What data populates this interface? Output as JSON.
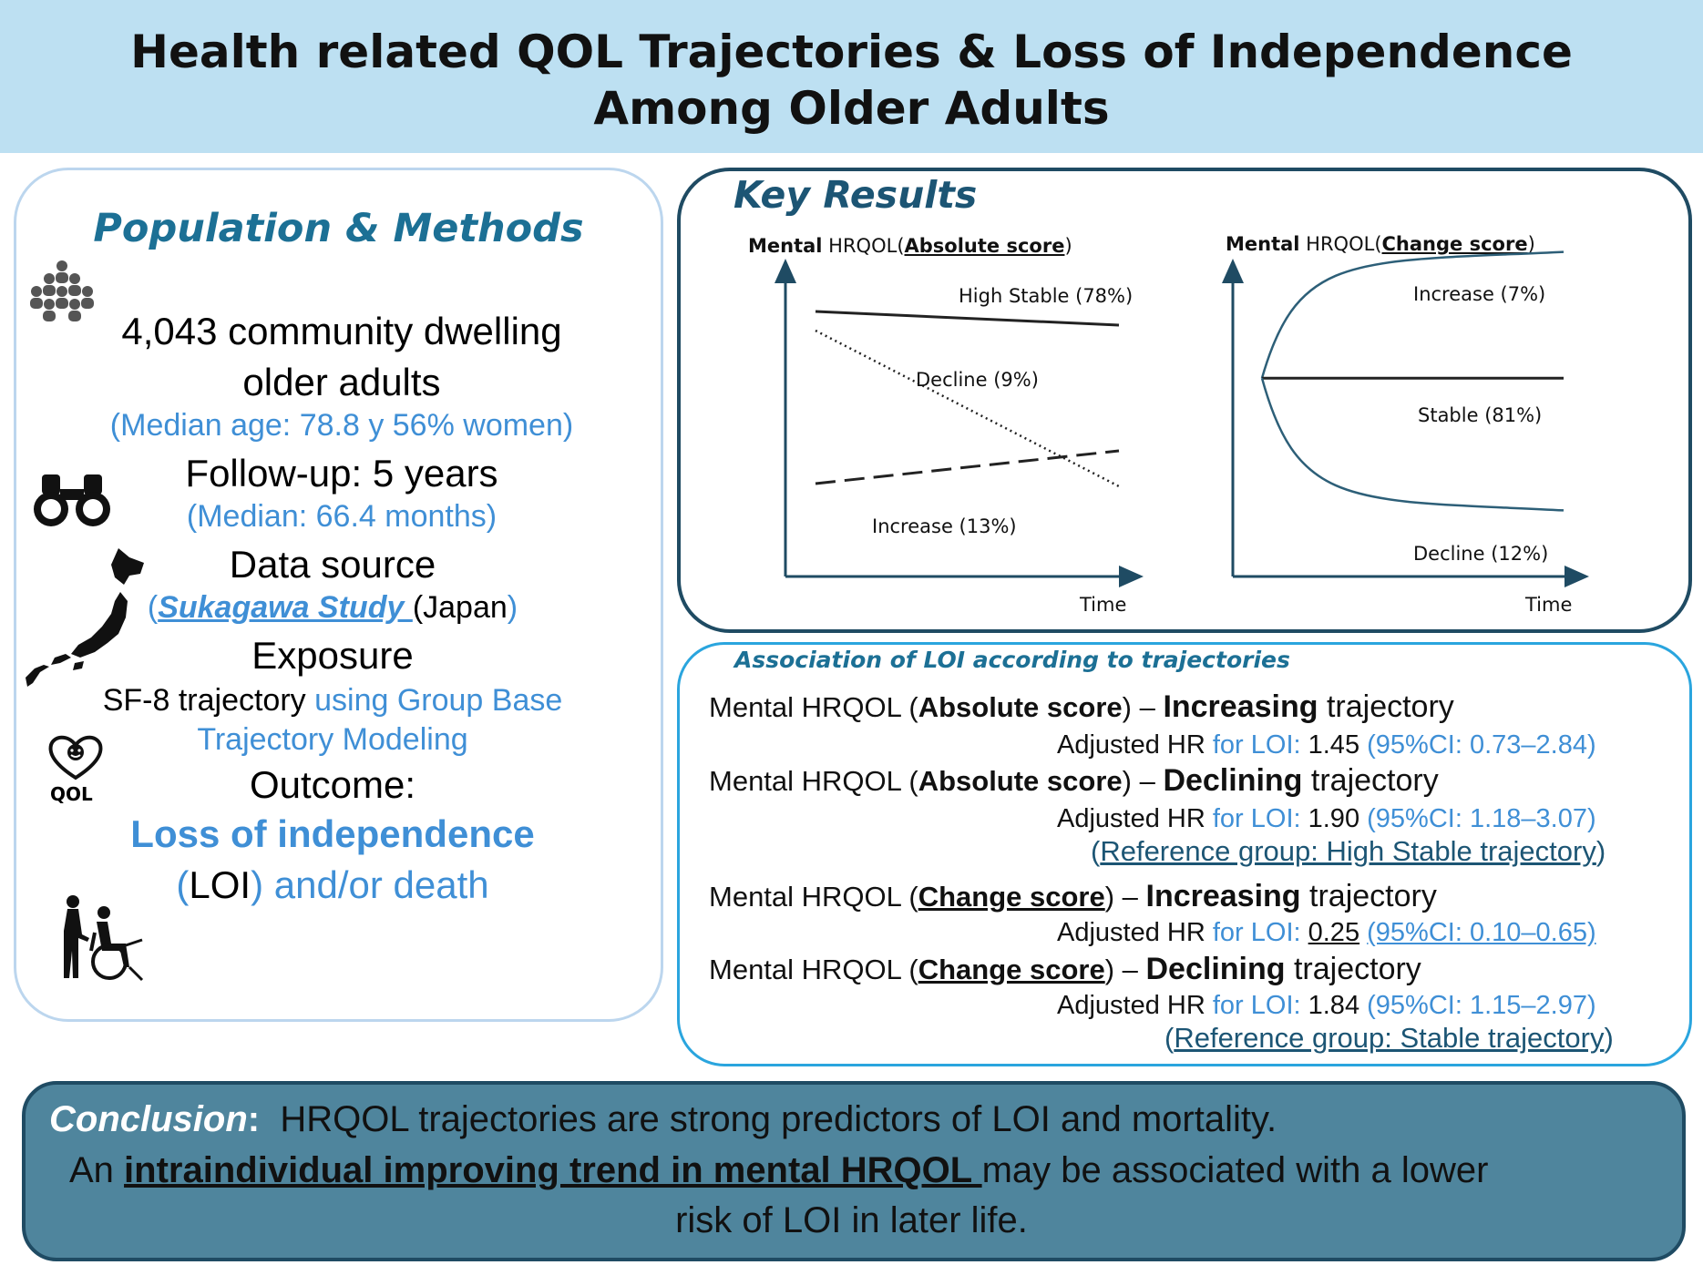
{
  "title": {
    "line1": "Health related QOL Trajectories & Loss of Independence",
    "line2": "Among Older Adults"
  },
  "methods": {
    "heading": "Population & Methods",
    "population_line1": "4,043 community dwelling",
    "population_line2": "older adults",
    "population_detail": "(Median age: 78.8 y 56% women)",
    "followup": "Follow-up: 5 years",
    "followup_detail": "(Median: 66.4 months)",
    "data_source_label": "Data source",
    "data_source_open": "(",
    "data_source_study": "Sukagawa Study ",
    "data_source_country": "(Japan",
    "data_source_close": ")",
    "exposure_label": "Exposure",
    "exposure_part1": "SF-8 trajectory ",
    "exposure_part2": "using Group Base",
    "exposure_line2": "Trajectory Modeling",
    "outcome_label": "Outcome:",
    "outcome_main": "Loss of independence",
    "outcome_paren_open": "(",
    "outcome_loi": "LOI",
    "outcome_rest": ") and/or death",
    "qol_icon_text": "QOL",
    "icons": [
      "people-group-icon",
      "binoculars-icon",
      "japan-map-icon",
      "heart-smile-icon",
      "caregiver-wheelchair-icon"
    ]
  },
  "results": {
    "heading": "Key Results",
    "chart_data": [
      {
        "type": "line",
        "title_bold": "Mental",
        "title_mid": " HRQOL(",
        "title_underlined": "Absolute score",
        "title_end": ")",
        "xlabel": "Time",
        "ylabel": "",
        "x": [
          0,
          1
        ],
        "series": [
          {
            "name": "High Stable (78%)",
            "style": "solid",
            "values": [
              0.86,
              0.81
            ]
          },
          {
            "name": "Decline (9%)",
            "style": "dotted",
            "values": [
              0.79,
              0.22
            ]
          },
          {
            "name": "Increase (13%)",
            "style": "dashed",
            "values": [
              0.23,
              0.35
            ]
          }
        ]
      },
      {
        "type": "line",
        "title_bold": "Mental",
        "title_mid": " HRQOL(",
        "title_underlined": "Change score",
        "title_end": ")",
        "xlabel": "Time",
        "ylabel": "",
        "x": [
          0,
          1
        ],
        "series": [
          {
            "name": "Increase (7%)",
            "style": "curve-up",
            "values": [
              0.56,
              0.98
            ]
          },
          {
            "name": "Stable (81%)",
            "style": "solid",
            "values": [
              0.56,
              0.56
            ]
          },
          {
            "name": "Decline (12%)",
            "style": "curve-down",
            "values": [
              0.56,
              0.12
            ]
          }
        ]
      }
    ]
  },
  "association": {
    "heading": "Association of LOI according to trajectories",
    "hr_prefix": "Adjusted HR ",
    "hr_for": "for LOI: ",
    "rows": [
      {
        "pre": "Mental HRQOL (",
        "score": "Absolute score",
        "mid": ") – ",
        "direction": "Increasing",
        "post": " trajectory",
        "hr": "1.45",
        "ci": "(95%CI: 0.73–2.84)"
      },
      {
        "pre": "Mental HRQOL (",
        "score": "Absolute score",
        "mid": ") – ",
        "direction": "Declining",
        "post": " trajectory",
        "hr": "1.90",
        "ci": "(95%CI: 1.18–3.07)"
      },
      {
        "pre": "Mental HRQOL (",
        "score": "Change score",
        "mid": ") – ",
        "direction": "Increasing",
        "post": " trajectory",
        "hr": "0.25",
        "ci": "(95%CI: 0.10–0.65)"
      },
      {
        "pre": "Mental HRQOL (",
        "score": "Change score",
        "mid": ") – ",
        "direction": "Declining",
        "post": " trajectory",
        "hr": "1.84",
        "ci": "(95%CI: 1.15–2.97)"
      }
    ],
    "reference1": "Reference group: High Stable trajectory",
    "reference2": "Reference group: Stable trajectory",
    "paren_open": "(",
    "paren_close": ")"
  },
  "conclusion": {
    "label": "Conclusion",
    "colon": ":",
    "line1": "HRQOL trajectories are strong predictors of LOI and mortality.",
    "line2_pre": "An ",
    "line2_emph": "intraindividual improving trend in mental HRQOL ",
    "line2_post": "may be associated with a lower",
    "line3": "risk of LOI in later life."
  },
  "colors": {
    "banner": "#bde0f2",
    "accent_blue": "#3f8fd6",
    "heading_teal": "#1c7095",
    "dark_navy": "#1f4b63",
    "conclusion_bg": "#4f859d"
  }
}
